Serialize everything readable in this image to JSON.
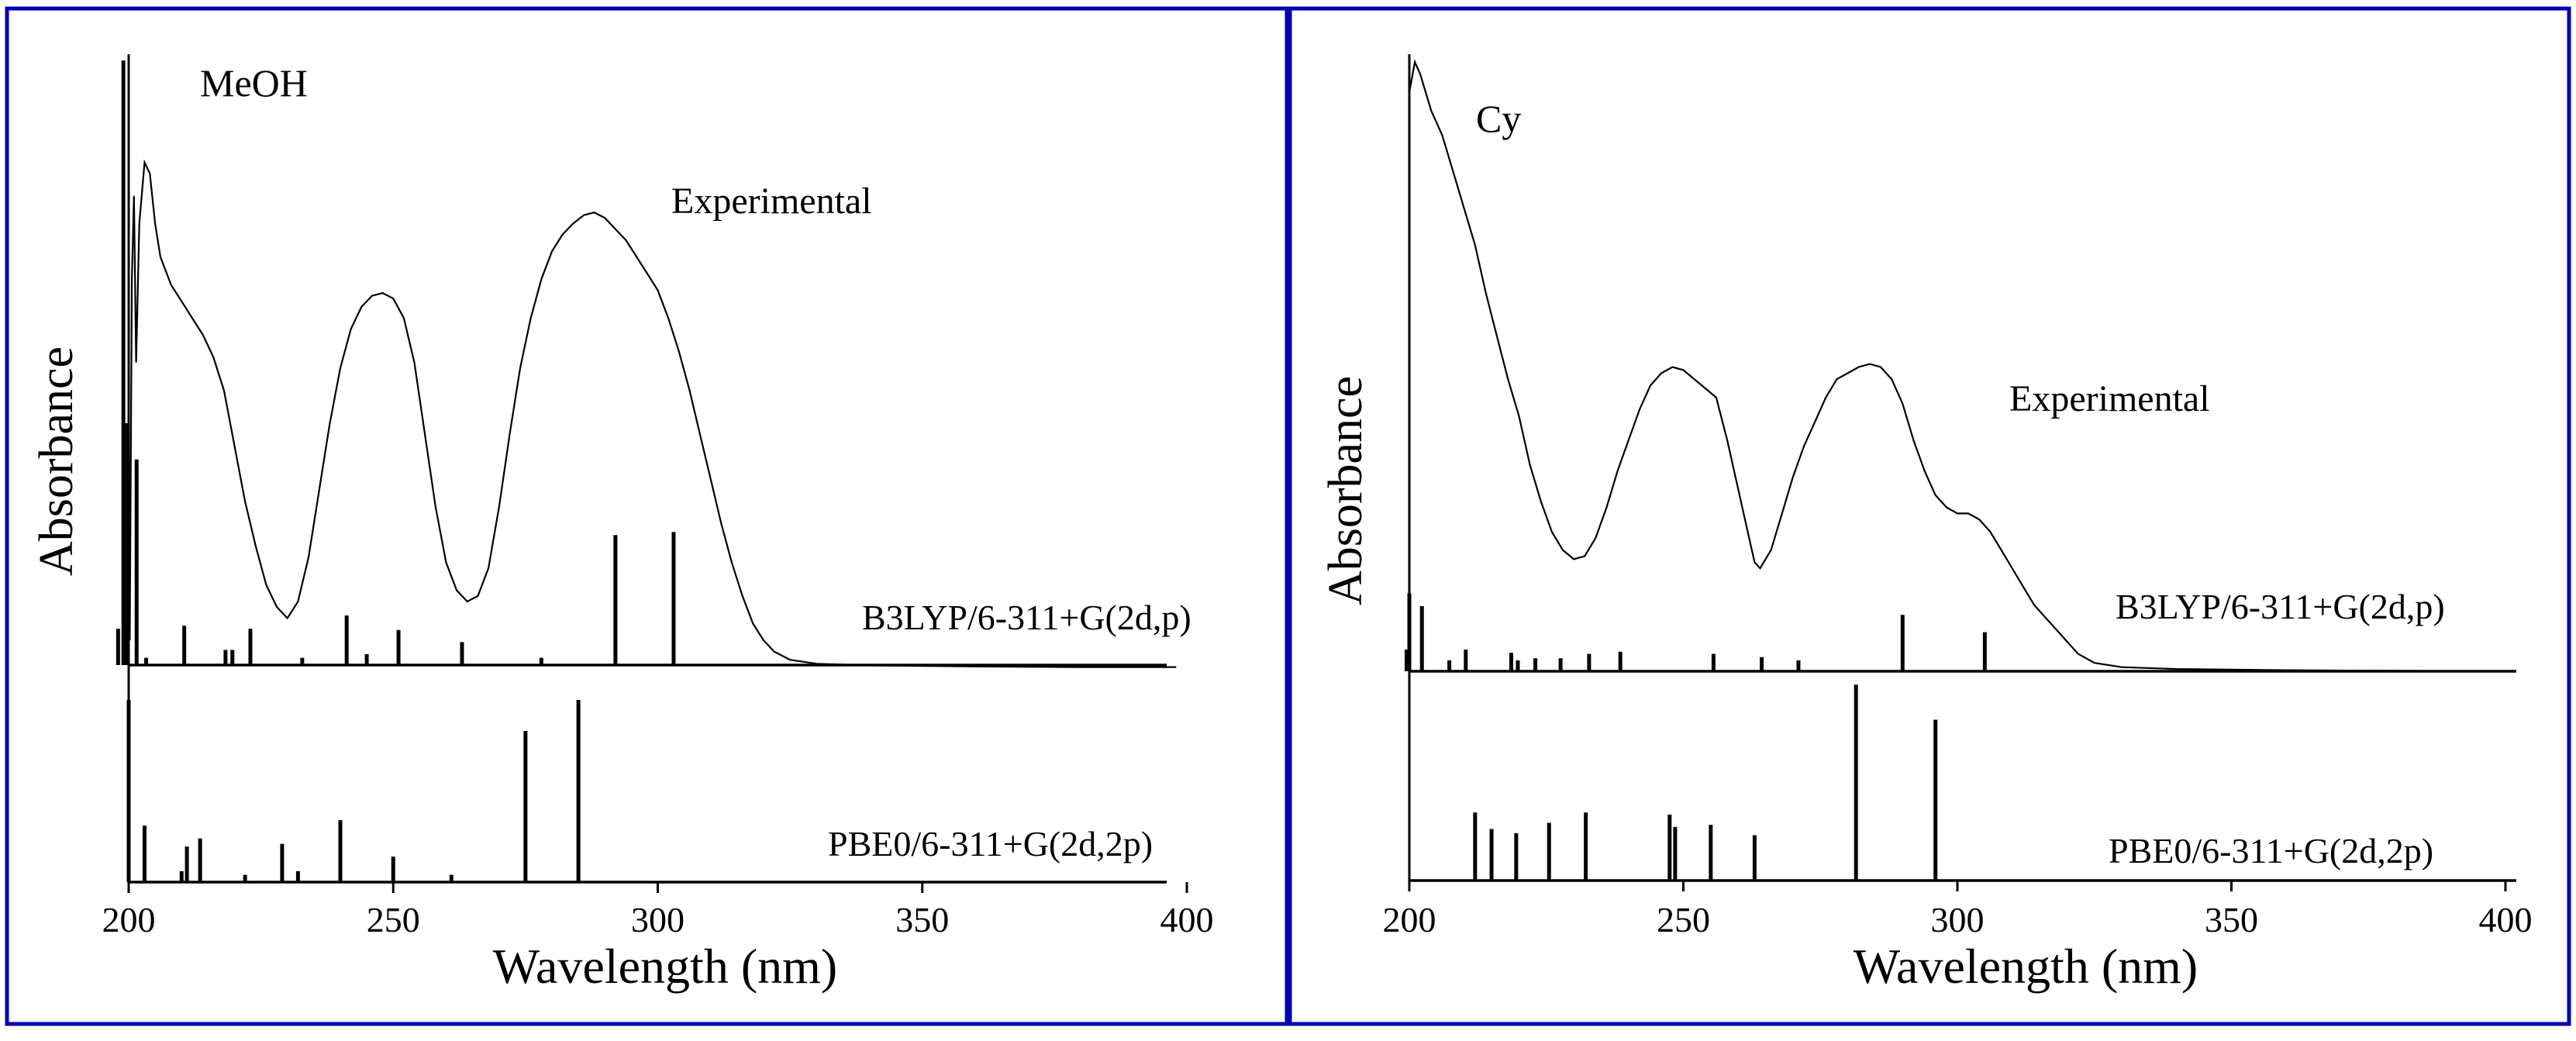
{
  "chart_data": [
    {
      "type": "line",
      "panel": "left",
      "solvent": "MeOH",
      "xlabel": "Wavelength (nm)",
      "ylabel": "Absorbance",
      "xlim": [
        200,
        400
      ],
      "x_ticks": [
        200,
        250,
        300,
        350,
        400
      ],
      "experimental": {
        "label": "Experimental",
        "points": [
          [
            200.2,
            0.05
          ],
          [
            200.6,
            0.7
          ],
          [
            201.0,
            0.85
          ],
          [
            201.4,
            0.55
          ],
          [
            202,
            0.8
          ],
          [
            203,
            0.91
          ],
          [
            204,
            0.89
          ],
          [
            205,
            0.8
          ],
          [
            206,
            0.74
          ],
          [
            208,
            0.69
          ],
          [
            210,
            0.66
          ],
          [
            212,
            0.63
          ],
          [
            214,
            0.6
          ],
          [
            216,
            0.56
          ],
          [
            218,
            0.5
          ],
          [
            220,
            0.4
          ],
          [
            222,
            0.3
          ],
          [
            224,
            0.22
          ],
          [
            226,
            0.15
          ],
          [
            228,
            0.11
          ],
          [
            230,
            0.09
          ],
          [
            232,
            0.12
          ],
          [
            234,
            0.2
          ],
          [
            236,
            0.32
          ],
          [
            238,
            0.44
          ],
          [
            240,
            0.54
          ],
          [
            242,
            0.61
          ],
          [
            244,
            0.65
          ],
          [
            246,
            0.67
          ],
          [
            248,
            0.675
          ],
          [
            250,
            0.665
          ],
          [
            252,
            0.63
          ],
          [
            254,
            0.55
          ],
          [
            256,
            0.42
          ],
          [
            258,
            0.29
          ],
          [
            260,
            0.19
          ],
          [
            262,
            0.14
          ],
          [
            264,
            0.12
          ],
          [
            266,
            0.13
          ],
          [
            268,
            0.18
          ],
          [
            270,
            0.29
          ],
          [
            272,
            0.42
          ],
          [
            274,
            0.54
          ],
          [
            276,
            0.63
          ],
          [
            278,
            0.7
          ],
          [
            280,
            0.75
          ],
          [
            282,
            0.78
          ],
          [
            284,
            0.8
          ],
          [
            286,
            0.815
          ],
          [
            288,
            0.82
          ],
          [
            290,
            0.81
          ],
          [
            292,
            0.79
          ],
          [
            294,
            0.77
          ],
          [
            296,
            0.74
          ],
          [
            298,
            0.71
          ],
          [
            300,
            0.68
          ],
          [
            302,
            0.63
          ],
          [
            304,
            0.57
          ],
          [
            306,
            0.5
          ],
          [
            308,
            0.42
          ],
          [
            310,
            0.34
          ],
          [
            312,
            0.26
          ],
          [
            314,
            0.19
          ],
          [
            316,
            0.13
          ],
          [
            318,
            0.08
          ],
          [
            320,
            0.05
          ],
          [
            322,
            0.03
          ],
          [
            325,
            0.015
          ],
          [
            330,
            0.008
          ],
          [
            340,
            0.005
          ],
          [
            360,
            0.003
          ],
          [
            380,
            0.002
          ],
          [
            398,
            0.002
          ]
        ]
      },
      "calculated": [
        {
          "name": "B3LYP/6-311+G(2d,p)",
          "lines": [
            [
              198.0,
              0.06
            ],
            [
              199.0,
              1.0
            ],
            [
              199.7,
              0.4
            ],
            [
              201.5,
              0.34
            ],
            [
              203.3,
              0.012
            ],
            [
              210.5,
              0.065
            ],
            [
              218.3,
              0.025
            ],
            [
              219.6,
              0.025
            ],
            [
              223.0,
              0.06
            ],
            [
              232.8,
              0.012
            ],
            [
              241.2,
              0.082
            ],
            [
              245.0,
              0.018
            ],
            [
              251.0,
              0.058
            ],
            [
              263.0,
              0.038
            ],
            [
              278.0,
              0.012
            ],
            [
              292.0,
              0.215
            ],
            [
              303.0,
              0.22
            ]
          ]
        },
        {
          "name": "PBE0/6-311+G(2d,2p)",
          "lines": [
            [
              200.0,
              1.0
            ],
            [
              203.0,
              0.31
            ],
            [
              210.0,
              0.06
            ],
            [
              211.0,
              0.195
            ],
            [
              213.5,
              0.24
            ],
            [
              222.0,
              0.04
            ],
            [
              229.0,
              0.21
            ],
            [
              232.0,
              0.06
            ],
            [
              240.0,
              0.34
            ],
            [
              250.0,
              0.14
            ],
            [
              261.0,
              0.04
            ],
            [
              275.0,
              0.83
            ],
            [
              285.0,
              1.0
            ]
          ]
        }
      ]
    },
    {
      "type": "line",
      "panel": "right",
      "solvent": "Cy",
      "xlabel": "Wavelength (nm)",
      "ylabel": "Absorbance",
      "xlim": [
        200,
        400
      ],
      "x_ticks": [
        200,
        250,
        300,
        350,
        400
      ],
      "experimental": {
        "label": "Experimental",
        "points": [
          [
            200.0,
            0.95
          ],
          [
            201,
            1.0
          ],
          [
            202,
            0.98
          ],
          [
            204,
            0.92
          ],
          [
            206,
            0.88
          ],
          [
            208,
            0.82
          ],
          [
            210,
            0.76
          ],
          [
            212,
            0.7
          ],
          [
            214,
            0.62
          ],
          [
            216,
            0.55
          ],
          [
            218,
            0.48
          ],
          [
            220,
            0.42
          ],
          [
            222,
            0.34
          ],
          [
            224,
            0.28
          ],
          [
            226,
            0.23
          ],
          [
            228,
            0.2
          ],
          [
            230,
            0.185
          ],
          [
            232,
            0.19
          ],
          [
            234,
            0.22
          ],
          [
            236,
            0.27
          ],
          [
            238,
            0.33
          ],
          [
            240,
            0.38
          ],
          [
            242,
            0.43
          ],
          [
            244,
            0.47
          ],
          [
            246,
            0.49
          ],
          [
            248,
            0.5
          ],
          [
            250,
            0.495
          ],
          [
            252,
            0.48
          ],
          [
            254,
            0.465
          ],
          [
            256,
            0.45
          ],
          [
            258,
            0.38
          ],
          [
            260,
            0.3
          ],
          [
            262,
            0.22
          ],
          [
            263,
            0.18
          ],
          [
            264,
            0.17
          ],
          [
            266,
            0.2
          ],
          [
            268,
            0.26
          ],
          [
            270,
            0.32
          ],
          [
            272,
            0.37
          ],
          [
            274,
            0.41
          ],
          [
            276,
            0.45
          ],
          [
            278,
            0.48
          ],
          [
            280,
            0.49
          ],
          [
            282,
            0.5
          ],
          [
            284,
            0.505
          ],
          [
            286,
            0.5
          ],
          [
            288,
            0.48
          ],
          [
            290,
            0.44
          ],
          [
            292,
            0.38
          ],
          [
            294,
            0.33
          ],
          [
            296,
            0.29
          ],
          [
            298,
            0.27
          ],
          [
            300,
            0.26
          ],
          [
            302,
            0.26
          ],
          [
            304,
            0.25
          ],
          [
            306,
            0.23
          ],
          [
            308,
            0.2
          ],
          [
            310,
            0.17
          ],
          [
            312,
            0.14
          ],
          [
            314,
            0.11
          ],
          [
            316,
            0.09
          ],
          [
            318,
            0.07
          ],
          [
            320,
            0.05
          ],
          [
            322,
            0.03
          ],
          [
            325,
            0.015
          ],
          [
            330,
            0.008
          ],
          [
            340,
            0.005
          ],
          [
            360,
            0.003
          ],
          [
            380,
            0.002
          ],
          [
            400,
            0.001
          ]
        ]
      },
      "calculated": [
        {
          "name": "B3LYP/6-311+G(2d,p)",
          "lines": [
            [
              199.5,
              0.1
            ],
            [
              200.0,
              0.36
            ],
            [
              202.3,
              0.3
            ],
            [
              207.3,
              0.05
            ],
            [
              210.3,
              0.1
            ],
            [
              218.6,
              0.085
            ],
            [
              219.8,
              0.05
            ],
            [
              223.0,
              0.06
            ],
            [
              227.6,
              0.06
            ],
            [
              232.8,
              0.08
            ],
            [
              238.5,
              0.09
            ],
            [
              255.5,
              0.08
            ],
            [
              264.3,
              0.065
            ],
            [
              271.0,
              0.05
            ],
            [
              290.0,
              0.26
            ],
            [
              305.0,
              0.18
            ]
          ]
        },
        {
          "name": "PBE0/6-311+G(2d,2p)",
          "lines": [
            [
              212.0,
              0.33
            ],
            [
              215.0,
              0.25
            ],
            [
              219.5,
              0.23
            ],
            [
              225.5,
              0.28
            ],
            [
              232.2,
              0.33
            ],
            [
              247.5,
              0.32
            ],
            [
              248.5,
              0.26
            ],
            [
              255.0,
              0.27
            ],
            [
              263.0,
              0.22
            ],
            [
              281.5,
              0.95
            ],
            [
              296.0,
              0.78
            ]
          ]
        }
      ]
    }
  ],
  "colors": {
    "frame": "#0000b2",
    "ink": "#000000",
    "background": "#ffffff"
  }
}
